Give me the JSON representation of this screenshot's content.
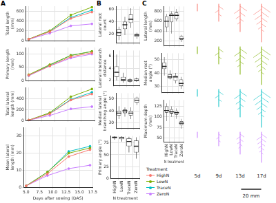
{
  "panel_labels": [
    "A",
    "B",
    "C"
  ],
  "legend": {
    "title": "Treatment",
    "series": [
      {
        "name": "HighN",
        "color": "#F8766D"
      },
      {
        "name": "LowN",
        "color": "#7CAE00"
      },
      {
        "name": "TraceN",
        "color": "#00BFC4"
      },
      {
        "name": "ZeroN",
        "color": "#C77CFF"
      }
    ]
  },
  "root_images": {
    "columns": [
      "5d",
      "9d",
      "13d",
      "17d"
    ],
    "scale_bar": "20 mm"
  },
  "chart_data": [
    {
      "type": "line",
      "y_label": "Total length\n(mm)",
      "x": [
        5,
        9,
        13,
        17
      ],
      "xlim": [
        4.5,
        17.5
      ],
      "xticks": [
        {
          "value": 5,
          "label": "5.0"
        },
        7.5,
        {
          "value": 10,
          "label": "10.0"
        },
        12.5,
        {
          "value": 15,
          "label": "15.0"
        },
        17.5
      ],
      "ylim": [
        0,
        700
      ],
      "yticks": [
        0,
        200,
        400,
        600
      ],
      "grid": true,
      "marker": "circle",
      "tick_labels": "y",
      "series": [
        {
          "name": "HighN",
          "color": "#F8766D",
          "values": [
            30,
            180,
            450,
            580
          ]
        },
        {
          "name": "LowN",
          "color": "#7CAE00",
          "values": [
            30,
            200,
            520,
            680
          ]
        },
        {
          "name": "TraceN",
          "color": "#00BFC4",
          "values": [
            30,
            190,
            470,
            620
          ]
        },
        {
          "name": "ZeroN",
          "color": "#C77CFF",
          "values": [
            25,
            150,
            300,
            340
          ]
        }
      ]
    },
    {
      "type": "line",
      "y_label": "Primary length\n(mm)",
      "x": [
        5,
        9,
        13,
        17
      ],
      "xlim": [
        4.5,
        17.5
      ],
      "xticks": [
        {
          "value": 5,
          "label": "5.0"
        },
        7.5,
        {
          "value": 10,
          "label": "10.0"
        },
        12.5,
        {
          "value": 15,
          "label": "15.0"
        },
        17.5
      ],
      "ylim": [
        0,
        125
      ],
      "yticks": [
        0,
        50,
        100
      ],
      "grid": true,
      "marker": "circle",
      "tick_labels": "y",
      "series": [
        {
          "name": "HighN",
          "color": "#F8766D",
          "values": [
            20,
            55,
            90,
            105
          ]
        },
        {
          "name": "LowN",
          "color": "#7CAE00",
          "values": [
            22,
            60,
            95,
            110
          ]
        },
        {
          "name": "TraceN",
          "color": "#00BFC4",
          "values": [
            20,
            58,
            95,
            110
          ]
        },
        {
          "name": "ZeroN",
          "color": "#C77CFF",
          "values": [
            18,
            55,
            85,
            100
          ]
        }
      ]
    },
    {
      "type": "line",
      "y_label": "Total lateral\nlength (mm)",
      "x": [
        5,
        9,
        13,
        17
      ],
      "xlim": [
        4.5,
        17.5
      ],
      "xticks": [
        {
          "value": 5,
          "label": "5.0"
        },
        7.5,
        {
          "value": 10,
          "label": "10.0"
        },
        12.5,
        {
          "value": 15,
          "label": "15.0"
        },
        17.5
      ],
      "ylim": [
        0,
        600
      ],
      "yticks": [
        0,
        200,
        400
      ],
      "grid": true,
      "marker": "circle",
      "tick_labels": "y",
      "series": [
        {
          "name": "HighN",
          "color": "#F8766D",
          "values": [
            5,
            120,
            370,
            480
          ]
        },
        {
          "name": "LowN",
          "color": "#7CAE00",
          "values": [
            5,
            140,
            430,
            570
          ]
        },
        {
          "name": "TraceN",
          "color": "#00BFC4",
          "values": [
            5,
            130,
            380,
            510
          ]
        },
        {
          "name": "ZeroN",
          "color": "#C77CFF",
          "values": [
            3,
            90,
            210,
            250
          ]
        }
      ]
    },
    {
      "type": "line",
      "y_label": "Mean lateral\nlength (mm)",
      "x_label": "Days after sowing (DAS)",
      "x": [
        5,
        9,
        13,
        17
      ],
      "xlim": [
        4.5,
        17.5
      ],
      "xticks": [
        {
          "value": 5,
          "label": "5.0"
        },
        7.5,
        {
          "value": 10,
          "label": "10.0"
        },
        12.5,
        {
          "value": 15,
          "label": "15.0"
        },
        17.5
      ],
      "ylim": [
        0,
        35
      ],
      "yticks": [
        0,
        10,
        20,
        30
      ],
      "grid": true,
      "marker": "circle",
      "series": [
        {
          "name": "HighN",
          "color": "#F8766D",
          "values": [
            1,
            8,
            18,
            22
          ]
        },
        {
          "name": "LowN",
          "color": "#7CAE00",
          "values": [
            1,
            9,
            20,
            23
          ]
        },
        {
          "name": "TraceN",
          "color": "#00BFC4",
          "values": [
            1,
            9,
            21,
            24
          ]
        },
        {
          "name": "ZeroN",
          "color": "#C77CFF",
          "values": [
            1,
            7,
            11,
            13
          ]
        }
      ]
    },
    {
      "type": "box",
      "y_label": "Lateral root\ncount",
      "categories": [
        "HighN",
        "LowN",
        "TraceN",
        "ZeroN"
      ],
      "min": [
        10,
        18,
        30,
        12
      ],
      "q1": [
        17,
        28,
        38,
        15
      ],
      "median": [
        22,
        35,
        44,
        18
      ],
      "q3": [
        28,
        40,
        52,
        20
      ],
      "max": [
        32,
        48,
        62,
        22
      ],
      "ylim": [
        5,
        65
      ],
      "yticks": [
        20,
        40,
        60
      ],
      "grid": true,
      "tick_labels": "y"
    },
    {
      "type": "box",
      "y_label": "Lateral interbranch\ndistance",
      "categories": [
        "HighN",
        "LowN",
        "TraceN",
        "ZeroN"
      ],
      "min": [
        1.9,
        1.5,
        1.5,
        1.7
      ],
      "q1": [
        2.5,
        1.8,
        1.7,
        1.8
      ],
      "median": [
        3.3,
        2.0,
        1.9,
        1.9
      ],
      "q3": [
        4.3,
        2.5,
        2.1,
        2.2
      ],
      "max": [
        6.3,
        3.2,
        2.3,
        2.4
      ],
      "ylim": [
        1,
        7
      ],
      "yticks": [
        2,
        4,
        6
      ],
      "grid": true,
      "tick_labels": "y"
    },
    {
      "type": "box",
      "y_label": "Median lateral\nbranching angle (°)",
      "categories": [
        "HighN",
        "LowN",
        "TraceN",
        "ZeroN"
      ],
      "min": [
        33,
        35,
        33,
        45
      ],
      "q1": [
        36,
        38,
        36,
        47
      ],
      "median": [
        38,
        40,
        38,
        49
      ],
      "q3": [
        40,
        41,
        40,
        51
      ],
      "max": [
        44,
        43,
        43,
        52
      ],
      "ylim": [
        25,
        55
      ],
      "yticks": [
        30,
        40,
        50
      ],
      "grid": true,
      "tick_labels": "y"
    },
    {
      "type": "box",
      "y_label": "Primary angle (°)",
      "x_label": "N treatment",
      "categories": [
        "HighN",
        "LowN",
        "TraceN",
        "ZeroN"
      ],
      "min": [
        82,
        78,
        55,
        42
      ],
      "q1": [
        85,
        83,
        68,
        55
      ],
      "median": [
        87,
        86,
        78,
        68
      ],
      "q3": [
        88,
        88,
        85,
        80
      ],
      "max": [
        89,
        89,
        88,
        87
      ],
      "ylim": [
        0,
        90
      ],
      "yticks": [
        0,
        25,
        50,
        75
      ],
      "grid": true
    },
    {
      "type": "box",
      "y_label": "Lateral length\n(mm)",
      "categories": [
        "HighN",
        "LowN",
        "TraceN",
        "ZeroN"
      ],
      "min": [
        380,
        350,
        600,
        180
      ],
      "q1": [
        480,
        580,
        640,
        220
      ],
      "median": [
        600,
        720,
        720,
        250
      ],
      "q3": [
        700,
        760,
        780,
        300
      ],
      "max": [
        750,
        800,
        850,
        320
      ],
      "ylim": [
        100,
        900
      ],
      "yticks": [
        200,
        400,
        600,
        800
      ],
      "grid": true,
      "tick_labels": "y"
    },
    {
      "type": "box",
      "y_label": "Median root\nangle (°)",
      "categories": [
        "HighN",
        "LowN",
        "TraceN",
        "ZeroN"
      ],
      "min": [
        38,
        35,
        32,
        28
      ],
      "q1": [
        43,
        36,
        34,
        30
      ],
      "median": [
        45,
        37,
        37,
        32
      ],
      "q3": [
        48,
        39,
        38,
        35
      ],
      "max": [
        52,
        42,
        40,
        37
      ],
      "ylim": [
        25,
        55
      ],
      "yticks": [
        30,
        40,
        50
      ],
      "grid": true,
      "tick_labels": "y"
    },
    {
      "type": "box",
      "y_label": "Maximum depth\n(mm)",
      "x_label": "N treatment",
      "categories": [
        "HighN",
        "LowN",
        "TraceN",
        "ZeroN"
      ],
      "min": [
        90,
        100,
        95,
        72
      ],
      "q1": [
        110,
        108,
        105,
        80
      ],
      "median": [
        115,
        112,
        110,
        85
      ],
      "q3": [
        125,
        118,
        115,
        90
      ],
      "max": [
        132,
        125,
        120,
        95
      ],
      "ylim": [
        40,
        140
      ],
      "yticks": [
        50,
        75,
        100,
        125
      ],
      "grid": true
    }
  ]
}
